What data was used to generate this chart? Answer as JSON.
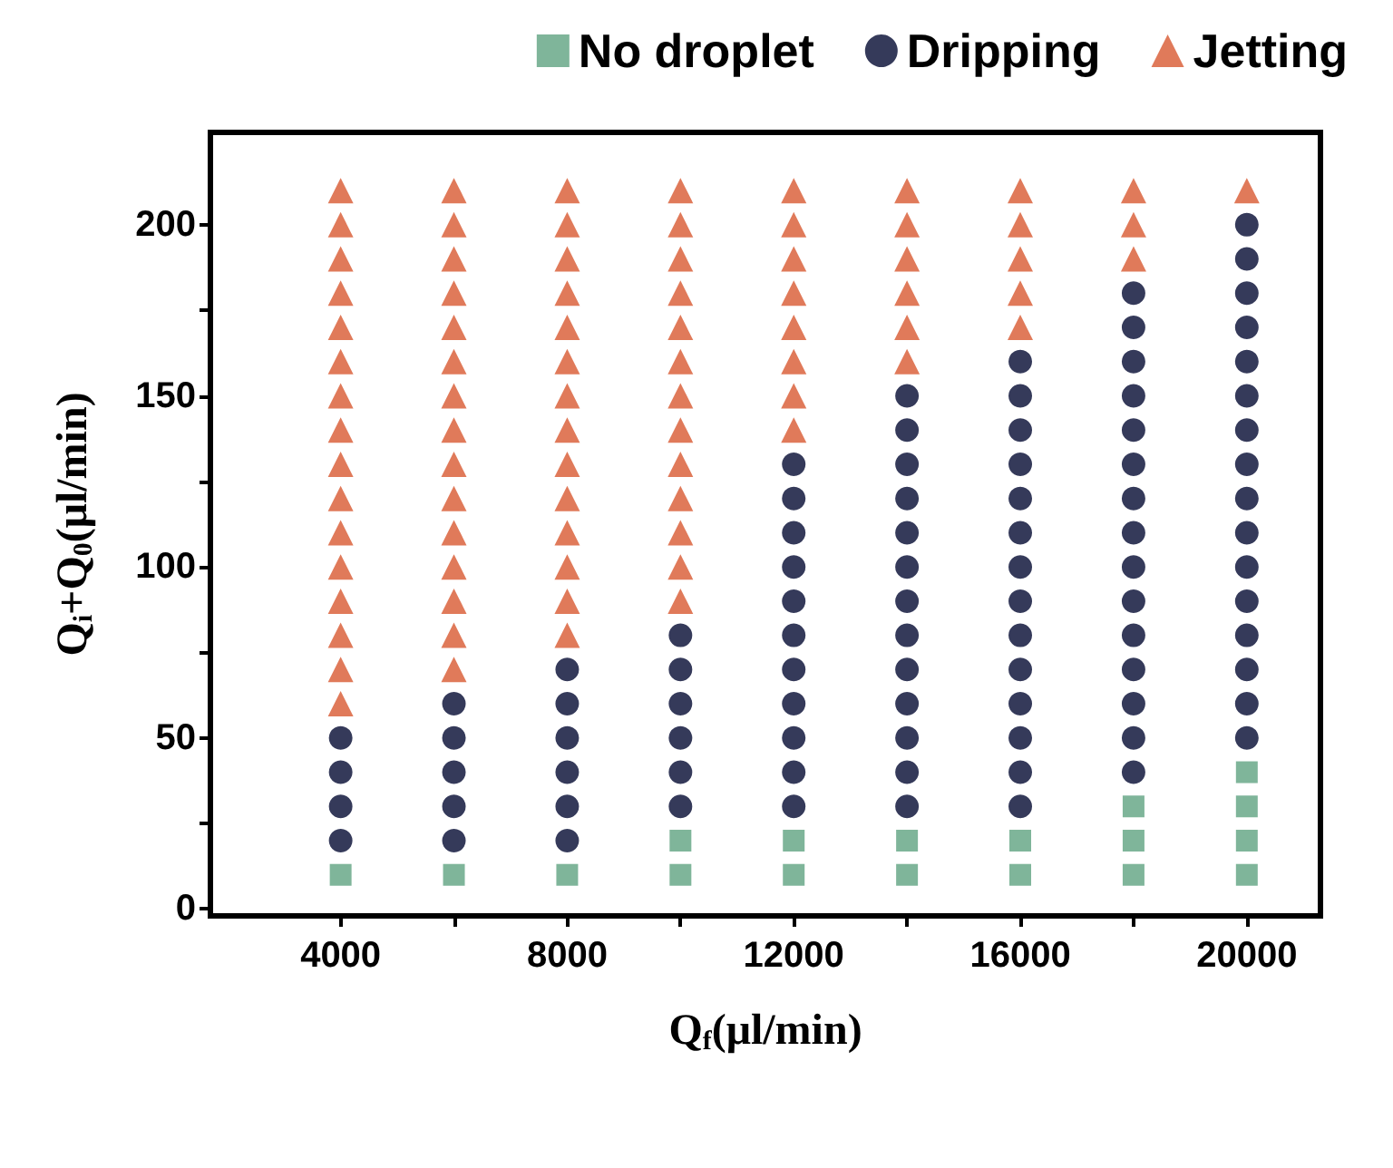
{
  "chart_data": {
    "type": "scatter",
    "xlabel": "Q$_{f}$(μl/min)",
    "ylabel": "Q$_{i}$+Q$_{0}$(μl/min)",
    "xlim": [
      1700,
      21300
    ],
    "xticks": [
      4000,
      {
        "value": 6000,
        "label": null
      },
      8000,
      {
        "value": 10000,
        "label": null
      },
      12000,
      {
        "value": 14000,
        "label": null
      },
      16000,
      {
        "value": 18000,
        "label": null
      },
      20000
    ],
    "ylim": [
      -2,
      227
    ],
    "yticks": [
      0,
      {
        "value": 25,
        "label": null
      },
      50,
      {
        "value": 75,
        "label": null
      },
      100,
      {
        "value": 125,
        "label": null
      },
      150,
      {
        "value": 175,
        "label": null
      },
      200
    ],
    "grid": false,
    "legend": "top right",
    "series": [
      {
        "name": "No droplet",
        "color": "#7fb59a",
        "marker": "square",
        "x": [
          4000,
          6000,
          8000,
          10000,
          10000,
          12000,
          12000,
          14000,
          14000,
          16000,
          16000,
          18000,
          18000,
          18000,
          20000,
          20000,
          20000,
          20000
        ],
        "values": [
          10,
          10,
          10,
          10,
          20,
          10,
          20,
          10,
          20,
          10,
          20,
          10,
          20,
          30,
          10,
          20,
          30,
          40
        ]
      },
      {
        "name": "Dripping",
        "color": "#353a5a",
        "marker": "circle",
        "x": [
          4000,
          4000,
          4000,
          4000,
          6000,
          6000,
          6000,
          6000,
          6000,
          8000,
          8000,
          8000,
          8000,
          8000,
          8000,
          10000,
          10000,
          10000,
          10000,
          10000,
          10000,
          12000,
          12000,
          12000,
          12000,
          12000,
          12000,
          12000,
          12000,
          12000,
          12000,
          12000,
          14000,
          14000,
          14000,
          14000,
          14000,
          14000,
          14000,
          14000,
          14000,
          14000,
          14000,
          14000,
          14000,
          16000,
          16000,
          16000,
          16000,
          16000,
          16000,
          16000,
          16000,
          16000,
          16000,
          16000,
          16000,
          16000,
          16000,
          18000,
          18000,
          18000,
          18000,
          18000,
          18000,
          18000,
          18000,
          18000,
          18000,
          18000,
          18000,
          18000,
          18000,
          18000,
          20000,
          20000,
          20000,
          20000,
          20000,
          20000,
          20000,
          20000,
          20000,
          20000,
          20000,
          20000,
          20000,
          20000,
          20000,
          20000
        ],
        "values": [
          20,
          30,
          40,
          50,
          20,
          30,
          40,
          50,
          60,
          20,
          30,
          40,
          50,
          60,
          70,
          30,
          40,
          50,
          60,
          70,
          80,
          30,
          40,
          50,
          60,
          70,
          80,
          90,
          100,
          110,
          120,
          130,
          30,
          40,
          50,
          60,
          70,
          80,
          90,
          100,
          110,
          120,
          130,
          140,
          150,
          30,
          40,
          50,
          60,
          70,
          80,
          90,
          100,
          110,
          120,
          130,
          140,
          150,
          160,
          40,
          50,
          60,
          70,
          80,
          90,
          100,
          110,
          120,
          130,
          140,
          150,
          160,
          170,
          180,
          50,
          60,
          70,
          80,
          90,
          100,
          110,
          120,
          130,
          140,
          150,
          160,
          170,
          180,
          190,
          200
        ]
      },
      {
        "name": "Jetting",
        "color": "#e07a5a",
        "marker": "triangle",
        "x": [
          4000,
          4000,
          4000,
          4000,
          4000,
          4000,
          4000,
          4000,
          4000,
          4000,
          4000,
          4000,
          4000,
          4000,
          4000,
          4000,
          6000,
          6000,
          6000,
          6000,
          6000,
          6000,
          6000,
          6000,
          6000,
          6000,
          6000,
          6000,
          6000,
          6000,
          6000,
          8000,
          8000,
          8000,
          8000,
          8000,
          8000,
          8000,
          8000,
          8000,
          8000,
          8000,
          8000,
          8000,
          8000,
          10000,
          10000,
          10000,
          10000,
          10000,
          10000,
          10000,
          10000,
          10000,
          10000,
          10000,
          10000,
          10000,
          12000,
          12000,
          12000,
          12000,
          12000,
          12000,
          12000,
          12000,
          14000,
          14000,
          14000,
          14000,
          14000,
          14000,
          16000,
          16000,
          16000,
          16000,
          16000,
          18000,
          18000,
          18000,
          20000
        ],
        "values": [
          60,
          70,
          80,
          90,
          100,
          110,
          120,
          130,
          140,
          150,
          160,
          170,
          180,
          190,
          200,
          210,
          70,
          80,
          90,
          100,
          110,
          120,
          130,
          140,
          150,
          160,
          170,
          180,
          190,
          200,
          210,
          80,
          90,
          100,
          110,
          120,
          130,
          140,
          150,
          160,
          170,
          180,
          190,
          200,
          210,
          90,
          100,
          110,
          120,
          130,
          140,
          150,
          160,
          170,
          180,
          190,
          200,
          210,
          140,
          150,
          160,
          170,
          180,
          190,
          200,
          210,
          160,
          170,
          180,
          190,
          200,
          210,
          170,
          180,
          190,
          200,
          210,
          190,
          200,
          210,
          210
        ]
      }
    ]
  }
}
